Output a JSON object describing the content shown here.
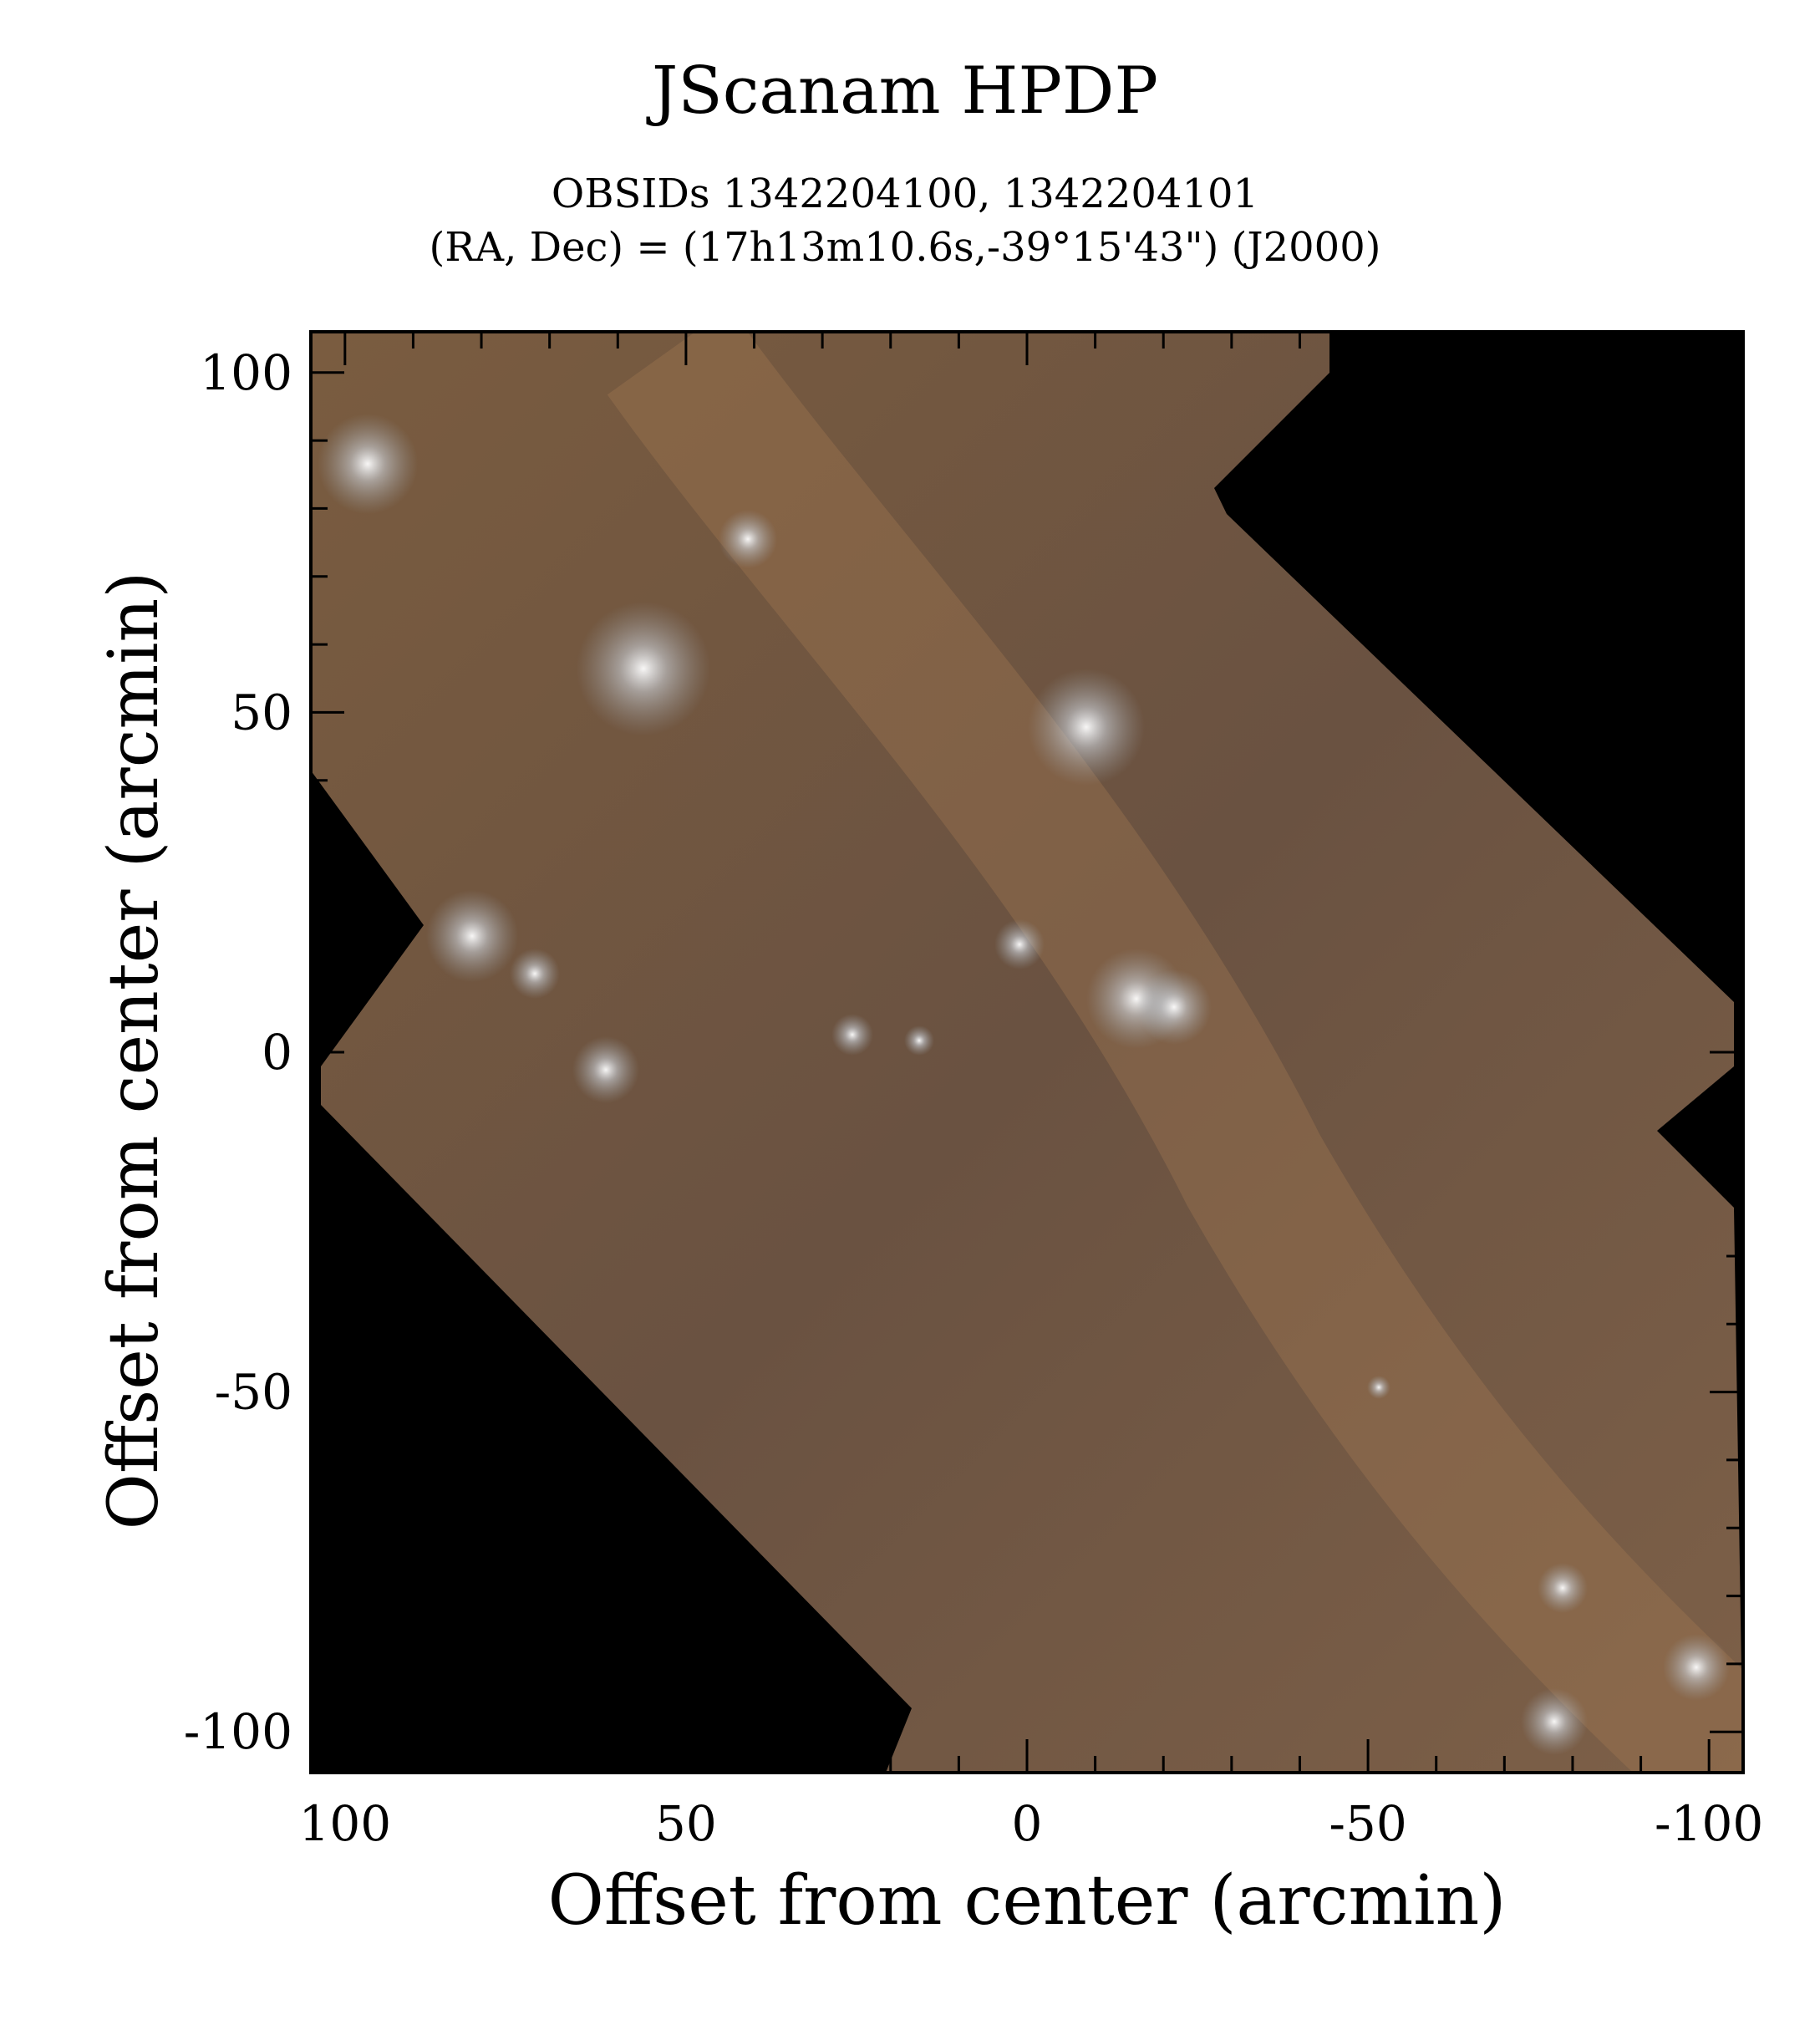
{
  "chart_data": {
    "type": "heatmap",
    "title": "JScanam HPDP",
    "subtitle_lines": [
      "OBSIDs 1342204100, 1342204101",
      "(RA, Dec) = (17h13m10.6s,-39°15'43\") (J2000)"
    ],
    "xlabel": "Offset from center (arcmin)",
    "ylabel": "Offset from center (arcmin)",
    "xlim": [
      105,
      -105
    ],
    "ylim": [
      -106,
      106
    ],
    "x_ticks": [
      100,
      50,
      0,
      -50,
      -100
    ],
    "x_tick_labels": [
      "100",
      "50",
      "0",
      "-50",
      "-100"
    ],
    "y_ticks": [
      100,
      50,
      0,
      -50,
      -100
    ],
    "y_tick_labels": [
      "100",
      "50",
      "0",
      "-50",
      "-100"
    ],
    "minor_tick_step": 10,
    "grid": false,
    "colors": {
      "background": "#000000",
      "emission": "#6b5440",
      "bright": "#f4f0ea"
    }
  }
}
